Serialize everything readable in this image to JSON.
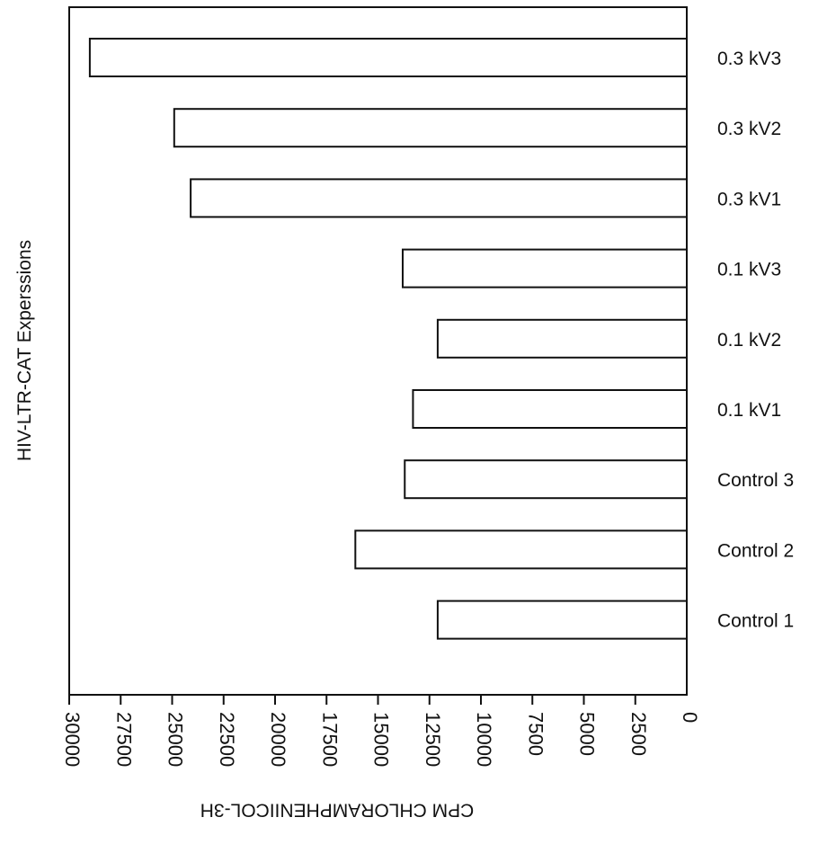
{
  "chart_data": {
    "type": "bar",
    "orientation": "horizontal",
    "x_direction": "reversed",
    "categories": [
      "0.3 kV3",
      "0.3 kV2",
      "0.3 kV1",
      "0.1 kV3",
      "0.1 kV2",
      "0.1 kV1",
      "Control 3",
      "Control 2",
      "Control 1"
    ],
    "values": [
      29000,
      24900,
      24100,
      13800,
      12100,
      13300,
      13700,
      16100,
      12100
    ],
    "xlabel": "CPM CHLORAMPHENIICOL-3H",
    "ylabel": "HIV-LTR-CAT Experssions",
    "xlim": [
      0,
      30000
    ],
    "xticks": [
      30000,
      27500,
      25000,
      22500,
      20000,
      17500,
      15000,
      12500,
      10000,
      7500,
      5000,
      2500,
      0
    ],
    "xtick_labels": [
      "30000",
      "27500",
      "25000",
      "22500",
      "20000",
      "17500",
      "15000",
      "12500",
      "10000",
      "7500",
      "5000",
      "2500",
      "0"
    ],
    "grid": false,
    "legend": "none"
  }
}
